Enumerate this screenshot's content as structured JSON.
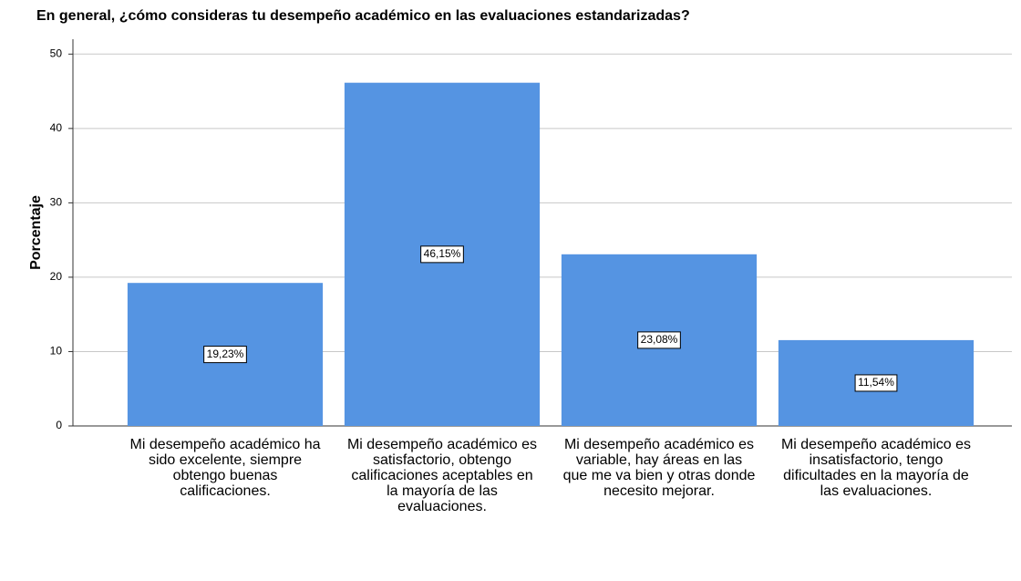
{
  "chart_data": {
    "type": "bar",
    "title": "En general, ¿cómo consideras tu desempeño académico en las evaluaciones estandarizadas?",
    "y_label": "Porcentaje",
    "categories": [
      "Mi desempeño académico ha sido excelente, siempre obtengo buenas calificaciones.",
      "Mi desempeño académico es satisfactorio, obtengo calificaciones aceptables en la mayoría de las evaluaciones.",
      "Mi desempeño académico es variable, hay áreas en las que me va bien y otras donde necesito mejorar.",
      "Mi desempeño académico es insatisfactorio, tengo dificultades en la mayoría de las evaluaciones."
    ],
    "values": [
      19.23,
      46.15,
      23.08,
      11.54
    ],
    "value_labels": [
      "19,23%",
      "46,15%",
      "23,08%",
      "11,54%"
    ],
    "color": "#5594e2",
    "ylim": [
      0,
      52
    ],
    "yticks": [
      0,
      10,
      20,
      30,
      40,
      50
    ],
    "grid": true
  }
}
